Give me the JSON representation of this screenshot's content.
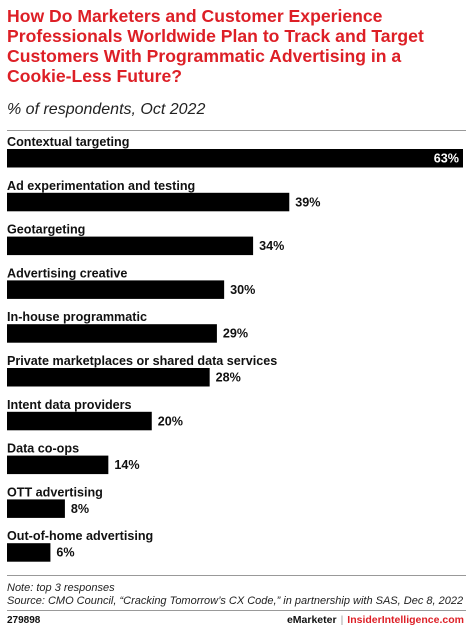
{
  "header": {
    "title": "How Do Marketers and Customer Experience Professionals Worldwide Plan to Track and Target Customers With Programmatic Advertising in a Cookie-Less Future?",
    "subtitle": "% of respondents, Oct 2022"
  },
  "chart_data": {
    "type": "bar",
    "orientation": "horizontal",
    "categories": [
      "Contextual targeting",
      "Ad experimentation and testing",
      "Geotargeting",
      "Advertising creative",
      "In-house programmatic",
      "Private marketplaces or shared data services",
      "Intent data providers",
      "Data co-ops",
      "OTT advertising",
      "Out-of-home advertising"
    ],
    "values": [
      63,
      39,
      34,
      30,
      29,
      28,
      20,
      14,
      8,
      6
    ],
    "value_suffix": "%",
    "title": "How Do Marketers and Customer Experience Professionals Worldwide Plan to Track and Target Customers With Programmatic Advertising in a Cookie-Less Future?",
    "subtitle": "% of respondents, Oct 2022",
    "xlim": [
      0,
      63
    ],
    "grid": false,
    "legend": "none",
    "bar_color": "#000000",
    "label_inside_color": "#ffffff",
    "label_outside_color": "#111111"
  },
  "footer": {
    "note": "Note: top 3 responses",
    "source": "Source: CMO Council, “Cracking Tomorrow’s CX Code,” in partnership with SAS, Dec 8, 2022",
    "chart_id": "279898",
    "brand_emarketer": "eMarketer",
    "brand_separator": "|",
    "brand_insider": "InsiderIntelligence.com"
  }
}
